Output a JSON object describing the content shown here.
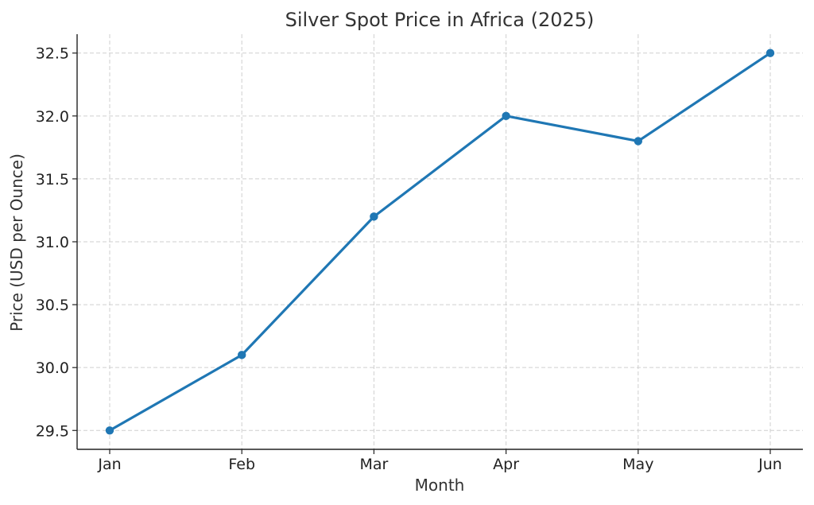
{
  "chart_data": {
    "type": "line",
    "title": "Silver Spot Price in Africa (2025)",
    "xlabel": "Month",
    "ylabel": "Price (USD per Ounce)",
    "categories": [
      "Jan",
      "Feb",
      "Mar",
      "Apr",
      "May",
      "Jun"
    ],
    "series": [
      {
        "values": [
          29.5,
          30.1,
          31.2,
          32.0,
          31.8,
          32.5
        ],
        "color": "#1f77b4"
      }
    ],
    "ylim": [
      29.35,
      32.65
    ],
    "yticks": [
      29.5,
      30.0,
      30.5,
      31.0,
      31.5,
      32.0,
      32.5
    ],
    "ytick_labels": [
      "29.5",
      "30.0",
      "30.5",
      "31.0",
      "31.5",
      "32.0",
      "32.5"
    ],
    "grid": true,
    "legend": "none"
  }
}
